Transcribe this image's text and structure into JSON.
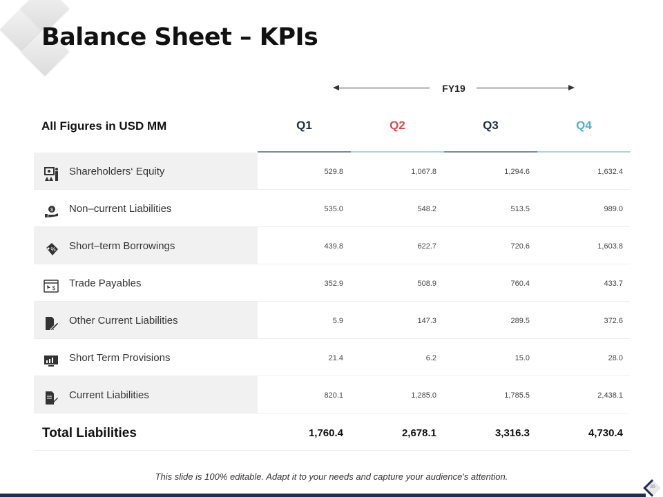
{
  "title": "Balance Sheet – KPIs",
  "period_label": "FY19",
  "units_label": "All Figures in USD MM",
  "quarters": [
    {
      "label": "Q1",
      "color": "#1f2d3d",
      "line": "#7f8a8f"
    },
    {
      "label": "Q2",
      "color": "#d9474b",
      "line": "#a8d5d8"
    },
    {
      "label": "Q3",
      "color": "#1f2d3d",
      "line": "#7f8a8f"
    },
    {
      "label": "Q4",
      "color": "#4fb3c6",
      "line": "#a8d5d8"
    }
  ],
  "rows": [
    {
      "label": "Shareholders‘ Equity",
      "icon": "presentation-icon",
      "values": [
        "529.8",
        "1,067.8",
        "1,294.6",
        "1,632.4"
      ]
    },
    {
      "label": "Non–current Liabilities",
      "icon": "hand-money-gear-icon",
      "values": [
        "535.0",
        "548.2",
        "513.5",
        "989.0"
      ]
    },
    {
      "label": "Short–term Borrowings",
      "icon": "percent-tag-icon",
      "values": [
        "439.8",
        "622.7",
        "720.6",
        "1,603.8"
      ]
    },
    {
      "label": "Trade Payables",
      "icon": "browser-dollar-icon",
      "values": [
        "352.9",
        "508.9",
        "760.4",
        "433.7"
      ]
    },
    {
      "label": "Other Current Liabilities",
      "icon": "document-pen-icon",
      "values": [
        "5.9",
        "147.3",
        "289.5",
        "372.6"
      ]
    },
    {
      "label": "Short Term Provisions",
      "icon": "monitor-chart-icon",
      "values": [
        "21.4",
        "6.2",
        "15.0",
        "28.0"
      ]
    },
    {
      "label": "Current Liabilities",
      "icon": "document-edit-icon",
      "values": [
        "820.1",
        "1,285.0",
        "1,785.5",
        "2,438.1"
      ]
    }
  ],
  "total": {
    "label": "Total Liabilities",
    "values": [
      "1,760.4",
      "2,678.1",
      "3,316.3",
      "4,730.4"
    ]
  },
  "footer": "This slide is 100% editable. Adapt it to your needs and capture your audience's attention.",
  "page_number": "35"
}
